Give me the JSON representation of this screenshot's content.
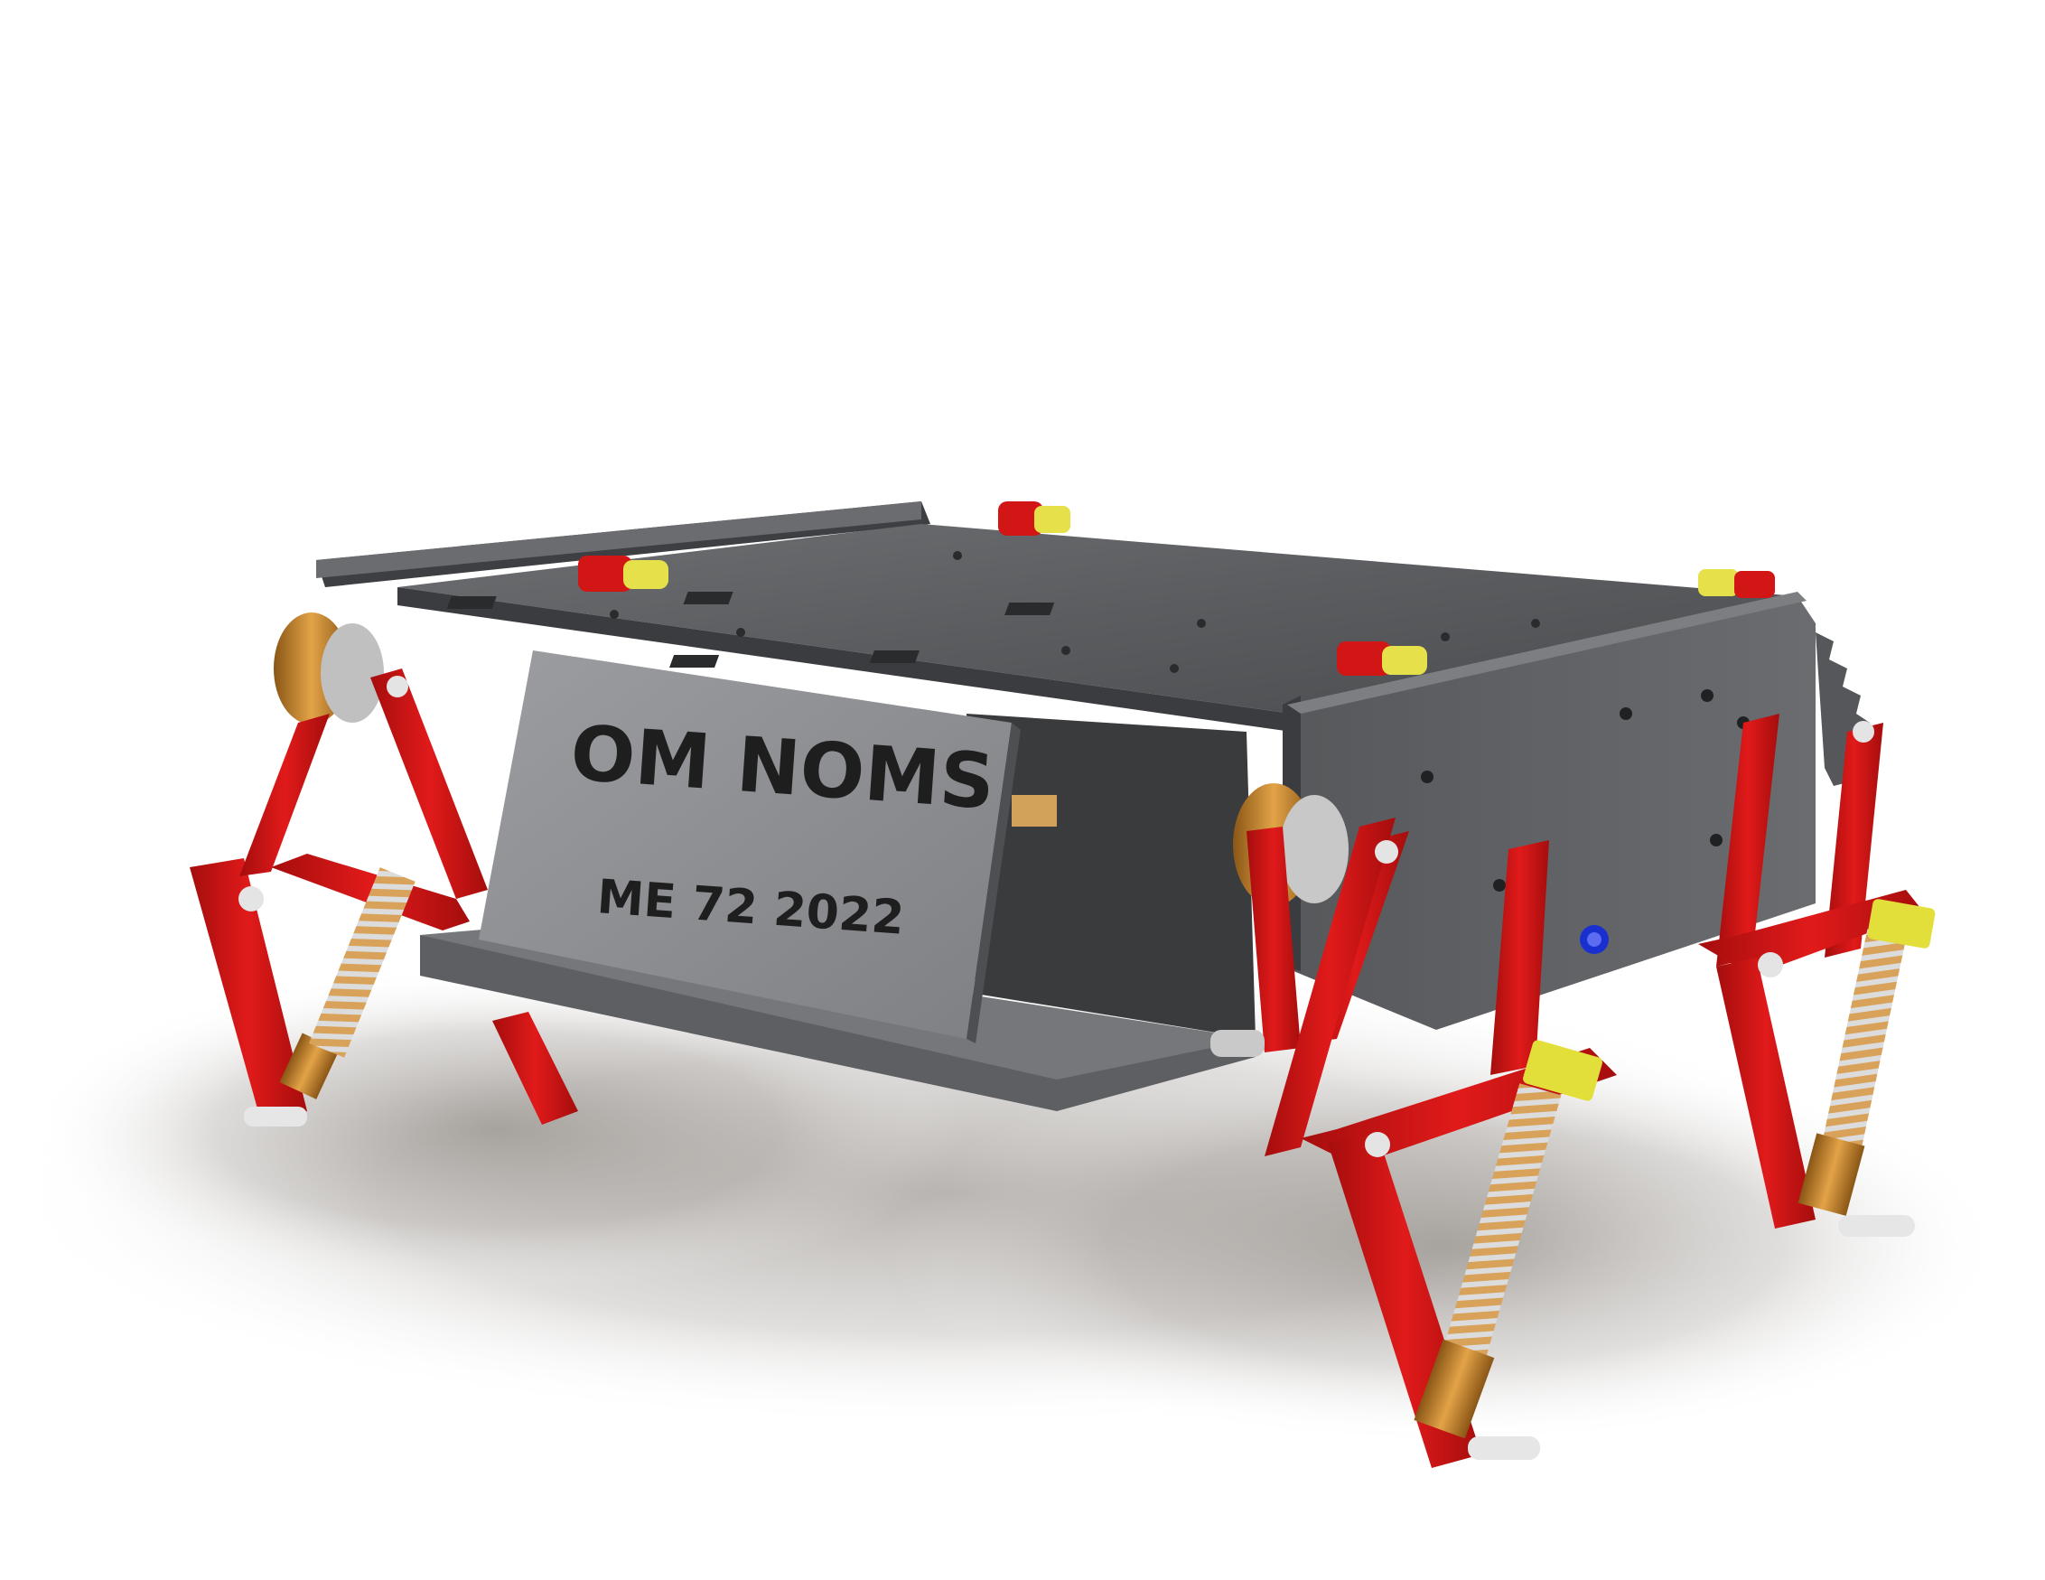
{
  "render": {
    "subject": "quadruped robot CAD render",
    "nameplate_title": "OM NOMS",
    "nameplate_subtitle": "ME 72 2022"
  },
  "colors": {
    "background": "#ffffff",
    "chassis": "#5e6063",
    "chassis_dark": "#3e4043",
    "nameplate": "#8d8f93",
    "leg_red": "#d01414",
    "leg_red_dark": "#8e0a0a",
    "bushing_bronze": "#c7842b",
    "tension_yellow": "#e3df3a",
    "spring": "#c9c9c9",
    "pin_silver": "#e2e2e2",
    "shadow": "#8e8a86"
  }
}
